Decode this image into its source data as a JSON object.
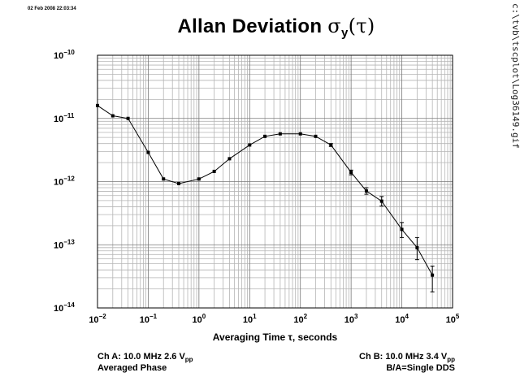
{
  "timestamp": "02 Feb 2008 22:03:34",
  "filepath": "c:\\tvb\\tscplot\\Log36149.gif",
  "title_text": "Allan Deviation ",
  "title_sigma": "σ",
  "title_sub": "y",
  "title_tau": "(τ)",
  "notes": {
    "ch_a_prefix": "Ch A: 10.0 MHz 2.6 V",
    "ch_a_sub": "pp",
    "ch_a_line2": "Averaged Phase",
    "ch_b_prefix": "Ch B: 10.0 MHz 3.4 V",
    "ch_b_sub": "pp",
    "ch_b_line2": "B/A=Single DDS"
  },
  "chart_data": {
    "type": "line",
    "title": "Allan Deviation σy(τ)",
    "xlabel": "Averaging Time τ, seconds",
    "ylabel": "",
    "x_scale": "log",
    "y_scale": "log",
    "xlim": [
      0.01,
      100000
    ],
    "ylim": [
      1e-14,
      1e-10
    ],
    "grid": true,
    "x_ticks": [
      {
        "base": "10",
        "exp": "−2"
      },
      {
        "base": "10",
        "exp": "−1"
      },
      {
        "base": "10",
        "exp": "0"
      },
      {
        "base": "10",
        "exp": "1"
      },
      {
        "base": "10",
        "exp": "2"
      },
      {
        "base": "10",
        "exp": "3"
      },
      {
        "base": "10",
        "exp": "4"
      },
      {
        "base": "10",
        "exp": "5"
      }
    ],
    "y_ticks": [
      {
        "base": "10",
        "exp": "−10"
      },
      {
        "base": "10",
        "exp": "−11"
      },
      {
        "base": "10",
        "exp": "−12"
      },
      {
        "base": "10",
        "exp": "−13"
      },
      {
        "base": "10",
        "exp": "−14"
      }
    ],
    "series": [
      {
        "x": [
          0.01,
          0.02,
          0.04,
          0.1,
          0.2,
          0.4,
          1,
          2,
          4,
          10,
          20,
          40,
          100,
          200,
          400,
          1000,
          2000,
          4000,
          10000,
          20000,
          40000
        ],
        "y": [
          1.6e-11,
          1.1e-11,
          1e-11,
          2.9e-12,
          1.1e-12,
          9.3e-13,
          1.1e-12,
          1.45e-12,
          2.3e-12,
          3.8e-12,
          5.2e-12,
          5.7e-12,
          5.7e-12,
          5.2e-12,
          3.8e-12,
          1.4e-12,
          7.1e-13,
          4.9e-13,
          1.75e-13,
          9e-14,
          3.3e-14
        ],
        "y_err_low": [
          1.59e-11,
          1.09e-11,
          9.9e-12,
          2.85e-12,
          1.08e-12,
          9.1e-13,
          1.07e-12,
          1.41e-12,
          2.24e-12,
          3.7e-12,
          5.05e-12,
          5.5e-12,
          5.5e-12,
          5e-12,
          3.6e-12,
          1.28e-12,
          6.3e-13,
          4.1e-13,
          1.3e-13,
          5.8e-14,
          1.8e-14
        ],
        "y_err_high": [
          1.61e-11,
          1.11e-11,
          1.01e-11,
          2.95e-12,
          1.12e-12,
          9.5e-13,
          1.13e-12,
          1.49e-12,
          2.36e-12,
          3.9e-12,
          5.35e-12,
          5.9e-12,
          5.9e-12,
          5.4e-12,
          4e-12,
          1.52e-12,
          8e-13,
          5.8e-13,
          2.25e-13,
          1.3e-13,
          4.6e-14
        ]
      }
    ]
  }
}
